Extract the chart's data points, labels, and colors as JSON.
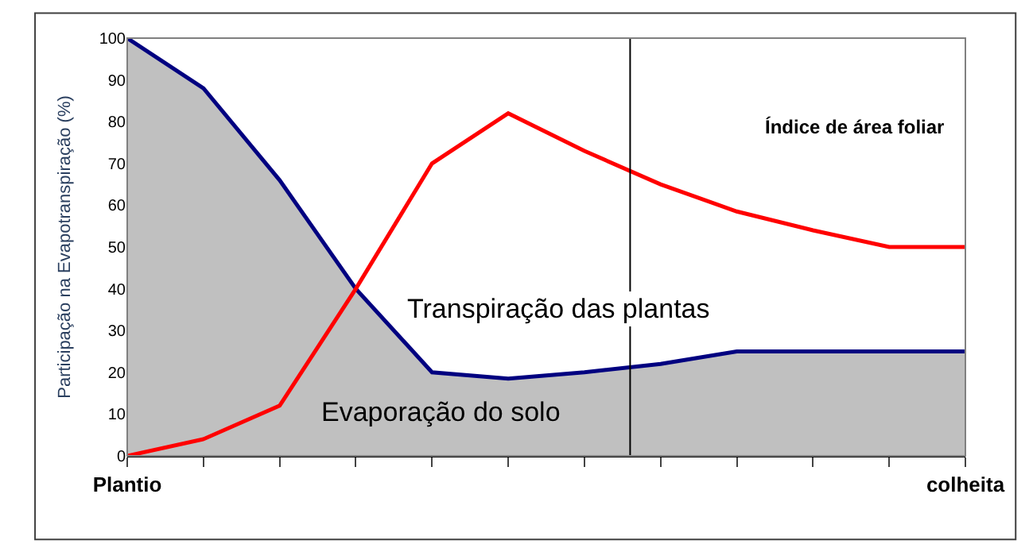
{
  "chart_data": {
    "type": "line",
    "ylabel": "Participação na Evapotranspiração (%)",
    "categories": [
      "Plantio",
      null,
      null,
      null,
      null,
      null,
      null,
      null,
      null,
      null,
      null,
      "colheita"
    ],
    "ylim": [
      0,
      100
    ],
    "yticks": [
      0,
      10,
      20,
      30,
      40,
      50,
      60,
      70,
      80,
      90,
      100
    ],
    "series": [
      {
        "type": "area",
        "color": "#000080",
        "values": [
          100,
          88,
          66,
          40,
          20,
          18.5,
          20,
          22,
          25,
          25,
          25,
          25
        ]
      },
      {
        "color": "#ff0000",
        "values": [
          0,
          4,
          12,
          40,
          70,
          82,
          73,
          65,
          58.5,
          54,
          50,
          50
        ]
      }
    ],
    "annotations": [
      "Índice de área foliar",
      "Transpiração das plantas",
      "Evaporação do solo"
    ]
  }
}
